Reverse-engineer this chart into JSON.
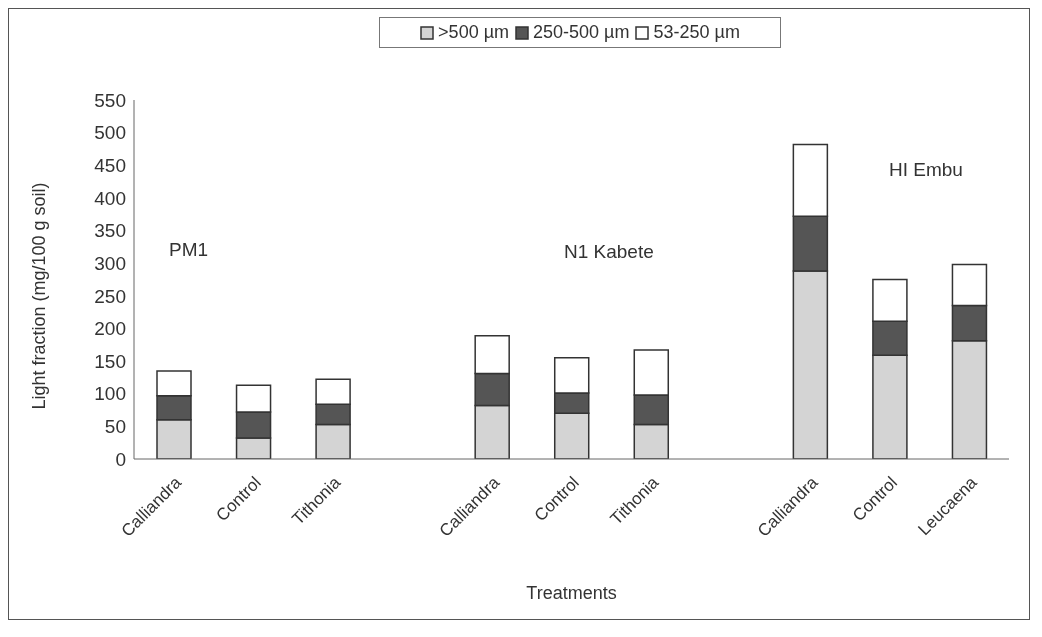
{
  "chart_data": {
    "type": "bar",
    "stacked": true,
    "xlabel": "Treatments",
    "ylabel": "Light fraction (mg/100 g soil)",
    "categories": [
      "Calliandra",
      "Control",
      "Tithonia",
      null,
      "Calliandra",
      "Control",
      "Tithonia",
      null,
      "Calliandra",
      "Control",
      "Leucaena"
    ],
    "series": [
      {
        "name": ">500 µm",
        "color": "#d4d4d4",
        "values": [
          60,
          32,
          53,
          null,
          82,
          70,
          53,
          null,
          288,
          159,
          181
        ]
      },
      {
        "name": "250-500 µm",
        "color": "#555555",
        "values": [
          37,
          40,
          31,
          null,
          49,
          31,
          45,
          null,
          84,
          52,
          54
        ]
      },
      {
        "name": "53-250 µm",
        "color": "#ffffff",
        "values": [
          38,
          41,
          38,
          null,
          58,
          54,
          69,
          null,
          110,
          64,
          63
        ]
      }
    ],
    "ylim": [
      0,
      550
    ],
    "yticks": [
      0,
      50,
      100,
      150,
      200,
      250,
      300,
      350,
      400,
      450,
      500,
      550
    ],
    "annotations": [
      "PM1",
      "N1 Kabete",
      "HI Embu"
    ],
    "legend": "top",
    "grid": false
  }
}
